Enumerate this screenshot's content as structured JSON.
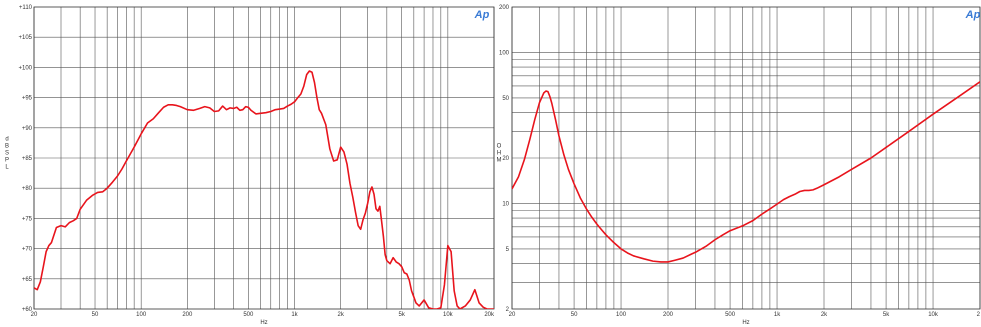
{
  "chart_data": [
    {
      "type": "line",
      "title": "",
      "xlabel": "Hz",
      "ylabel": "d B S P L",
      "x_scale": "log",
      "xlim": [
        20,
        20000
      ],
      "ylim": [
        60,
        110
      ],
      "grid": true,
      "logo": "Ap",
      "x_ticks": [
        {
          "v": 20,
          "t": "20"
        },
        {
          "v": 50,
          "t": "50"
        },
        {
          "v": 100,
          "t": "100"
        },
        {
          "v": 200,
          "t": "200"
        },
        {
          "v": 500,
          "t": "500"
        },
        {
          "v": 1000,
          "t": "1k"
        },
        {
          "v": 2000,
          "t": "2k"
        },
        {
          "v": 5000,
          "t": "5k"
        },
        {
          "v": 10000,
          "t": "10k"
        },
        {
          "v": 20000,
          "t": "20k"
        }
      ],
      "y_ticks": [
        {
          "v": 60,
          "t": "+60"
        },
        {
          "v": 65,
          "t": "+65"
        },
        {
          "v": 70,
          "t": "+70"
        },
        {
          "v": 75,
          "t": "+75"
        },
        {
          "v": 80,
          "t": "+80"
        },
        {
          "v": 85,
          "t": "+85"
        },
        {
          "v": 90,
          "t": "+90"
        },
        {
          "v": 95,
          "t": "+95"
        },
        {
          "v": 100,
          "t": "+100"
        },
        {
          "v": 105,
          "t": "+105"
        },
        {
          "v": 110,
          "t": "+110"
        }
      ],
      "series": [
        {
          "color": "#e8141c",
          "x": [
            20,
            21,
            22,
            23,
            24,
            25,
            26,
            28,
            30,
            32,
            34,
            36,
            38,
            40,
            44,
            48,
            52,
            56,
            60,
            65,
            70,
            75,
            80,
            90,
            100,
            110,
            120,
            130,
            140,
            150,
            160,
            170,
            180,
            200,
            220,
            240,
            260,
            280,
            300,
            320,
            340,
            360,
            380,
            400,
            420,
            440,
            460,
            480,
            500,
            520,
            560,
            600,
            650,
            700,
            750,
            800,
            850,
            900,
            950,
            1000,
            1050,
            1100,
            1150,
            1200,
            1250,
            1300,
            1350,
            1400,
            1450,
            1500,
            1600,
            1700,
            1800,
            1900,
            2000,
            2100,
            2200,
            2300,
            2400,
            2500,
            2600,
            2700,
            2800,
            2900,
            3000,
            3100,
            3200,
            3300,
            3400,
            3500,
            3600,
            3700,
            3800,
            3900,
            4000,
            4200,
            4400,
            4600,
            4800,
            5000,
            5200,
            5400,
            5600,
            5800,
            6000,
            6200,
            6500,
            7000,
            7500,
            8000,
            8500,
            9000,
            9500,
            10000,
            10500,
            11000,
            11500,
            12000,
            13000,
            14000,
            15000,
            16000,
            17000,
            18000,
            19000,
            20000
          ],
          "y": [
            63.5,
            63.2,
            64.5,
            67.0,
            69.5,
            70.5,
            71.0,
            73.5,
            73.8,
            73.6,
            74.3,
            74.6,
            75.0,
            76.5,
            78.0,
            78.8,
            79.3,
            79.4,
            80.0,
            81.0,
            82.0,
            83.2,
            84.5,
            86.8,
            89.0,
            90.8,
            91.5,
            92.5,
            93.4,
            93.8,
            93.8,
            93.7,
            93.5,
            93.0,
            92.9,
            93.2,
            93.5,
            93.3,
            92.7,
            92.8,
            93.6,
            93.0,
            93.3,
            93.2,
            93.4,
            92.9,
            93.0,
            93.5,
            93.4,
            92.9,
            92.3,
            92.4,
            92.5,
            92.7,
            93.0,
            93.1,
            93.2,
            93.6,
            93.9,
            94.3,
            95.0,
            95.6,
            96.9,
            98.8,
            99.4,
            99.2,
            97.5,
            95.0,
            93.0,
            92.4,
            90.5,
            86.5,
            84.5,
            84.7,
            86.8,
            86.0,
            84.0,
            80.8,
            78.5,
            76.0,
            73.8,
            73.2,
            74.8,
            75.9,
            77.5,
            79.4,
            80.2,
            79.0,
            76.6,
            76.2,
            77.0,
            74.5,
            72.0,
            69.0,
            68.0,
            67.5,
            68.5,
            67.8,
            67.5,
            67.0,
            66.0,
            65.8,
            64.8,
            63.0,
            62.0,
            61.0,
            60.5,
            61.5,
            60.2,
            60.0,
            60.0,
            60.2,
            64.0,
            70.5,
            69.5,
            63.0,
            60.5,
            60.0,
            60.5,
            61.5,
            63.2,
            61.0,
            60.3,
            60.0,
            60.0,
            60.0
          ]
        }
      ]
    },
    {
      "type": "line",
      "title": "",
      "xlabel": "Hz",
      "ylabel": "O H M",
      "x_scale": "log",
      "y_scale": "log",
      "xlim": [
        20,
        20000
      ],
      "ylim": [
        2,
        200
      ],
      "grid": true,
      "logo": "Ap",
      "x_ticks": [
        {
          "v": 20,
          "t": "20"
        },
        {
          "v": 50,
          "t": "50"
        },
        {
          "v": 100,
          "t": "100"
        },
        {
          "v": 200,
          "t": "200"
        },
        {
          "v": 500,
          "t": "500"
        },
        {
          "v": 1000,
          "t": "1k"
        },
        {
          "v": 2000,
          "t": "2k"
        },
        {
          "v": 5000,
          "t": "5k"
        },
        {
          "v": 10000,
          "t": "10k"
        },
        {
          "v": 20000,
          "t": "2"
        }
      ],
      "y_ticks": [
        {
          "v": 2,
          "t": "2"
        },
        {
          "v": 5,
          "t": "5"
        },
        {
          "v": 10,
          "t": "10"
        },
        {
          "v": 20,
          "t": "20"
        },
        {
          "v": 50,
          "t": "50"
        },
        {
          "v": 100,
          "t": "100"
        },
        {
          "v": 200,
          "t": "200"
        }
      ],
      "series": [
        {
          "color": "#e8141c",
          "x": [
            20,
            22,
            24,
            26,
            28,
            30,
            32,
            33,
            34,
            35,
            36,
            38,
            40,
            43,
            46,
            50,
            55,
            60,
            65,
            70,
            75,
            80,
            90,
            100,
            110,
            120,
            140,
            160,
            180,
            200,
            220,
            250,
            280,
            300,
            350,
            400,
            450,
            500,
            600,
            700,
            800,
            900,
            1000,
            1100,
            1200,
            1300,
            1400,
            1500,
            1600,
            1700,
            1800,
            2000,
            2500,
            3000,
            4000,
            5000,
            7000,
            10000,
            15000,
            20000
          ],
          "y": [
            12.5,
            15.0,
            19.5,
            26.5,
            36.0,
            46.5,
            54.0,
            55.5,
            55.0,
            51.0,
            46.0,
            36.0,
            28.0,
            21.0,
            16.8,
            13.5,
            10.8,
            9.2,
            8.1,
            7.3,
            6.7,
            6.2,
            5.5,
            5.0,
            4.7,
            4.5,
            4.3,
            4.15,
            4.1,
            4.1,
            4.2,
            4.35,
            4.6,
            4.75,
            5.2,
            5.75,
            6.2,
            6.6,
            7.1,
            7.7,
            8.5,
            9.2,
            9.9,
            10.6,
            11.1,
            11.5,
            12.0,
            12.2,
            12.2,
            12.3,
            12.6,
            13.3,
            15.0,
            16.8,
            20.0,
            23.5,
            30.0,
            39.0,
            52.0,
            64.0
          ]
        }
      ]
    }
  ]
}
